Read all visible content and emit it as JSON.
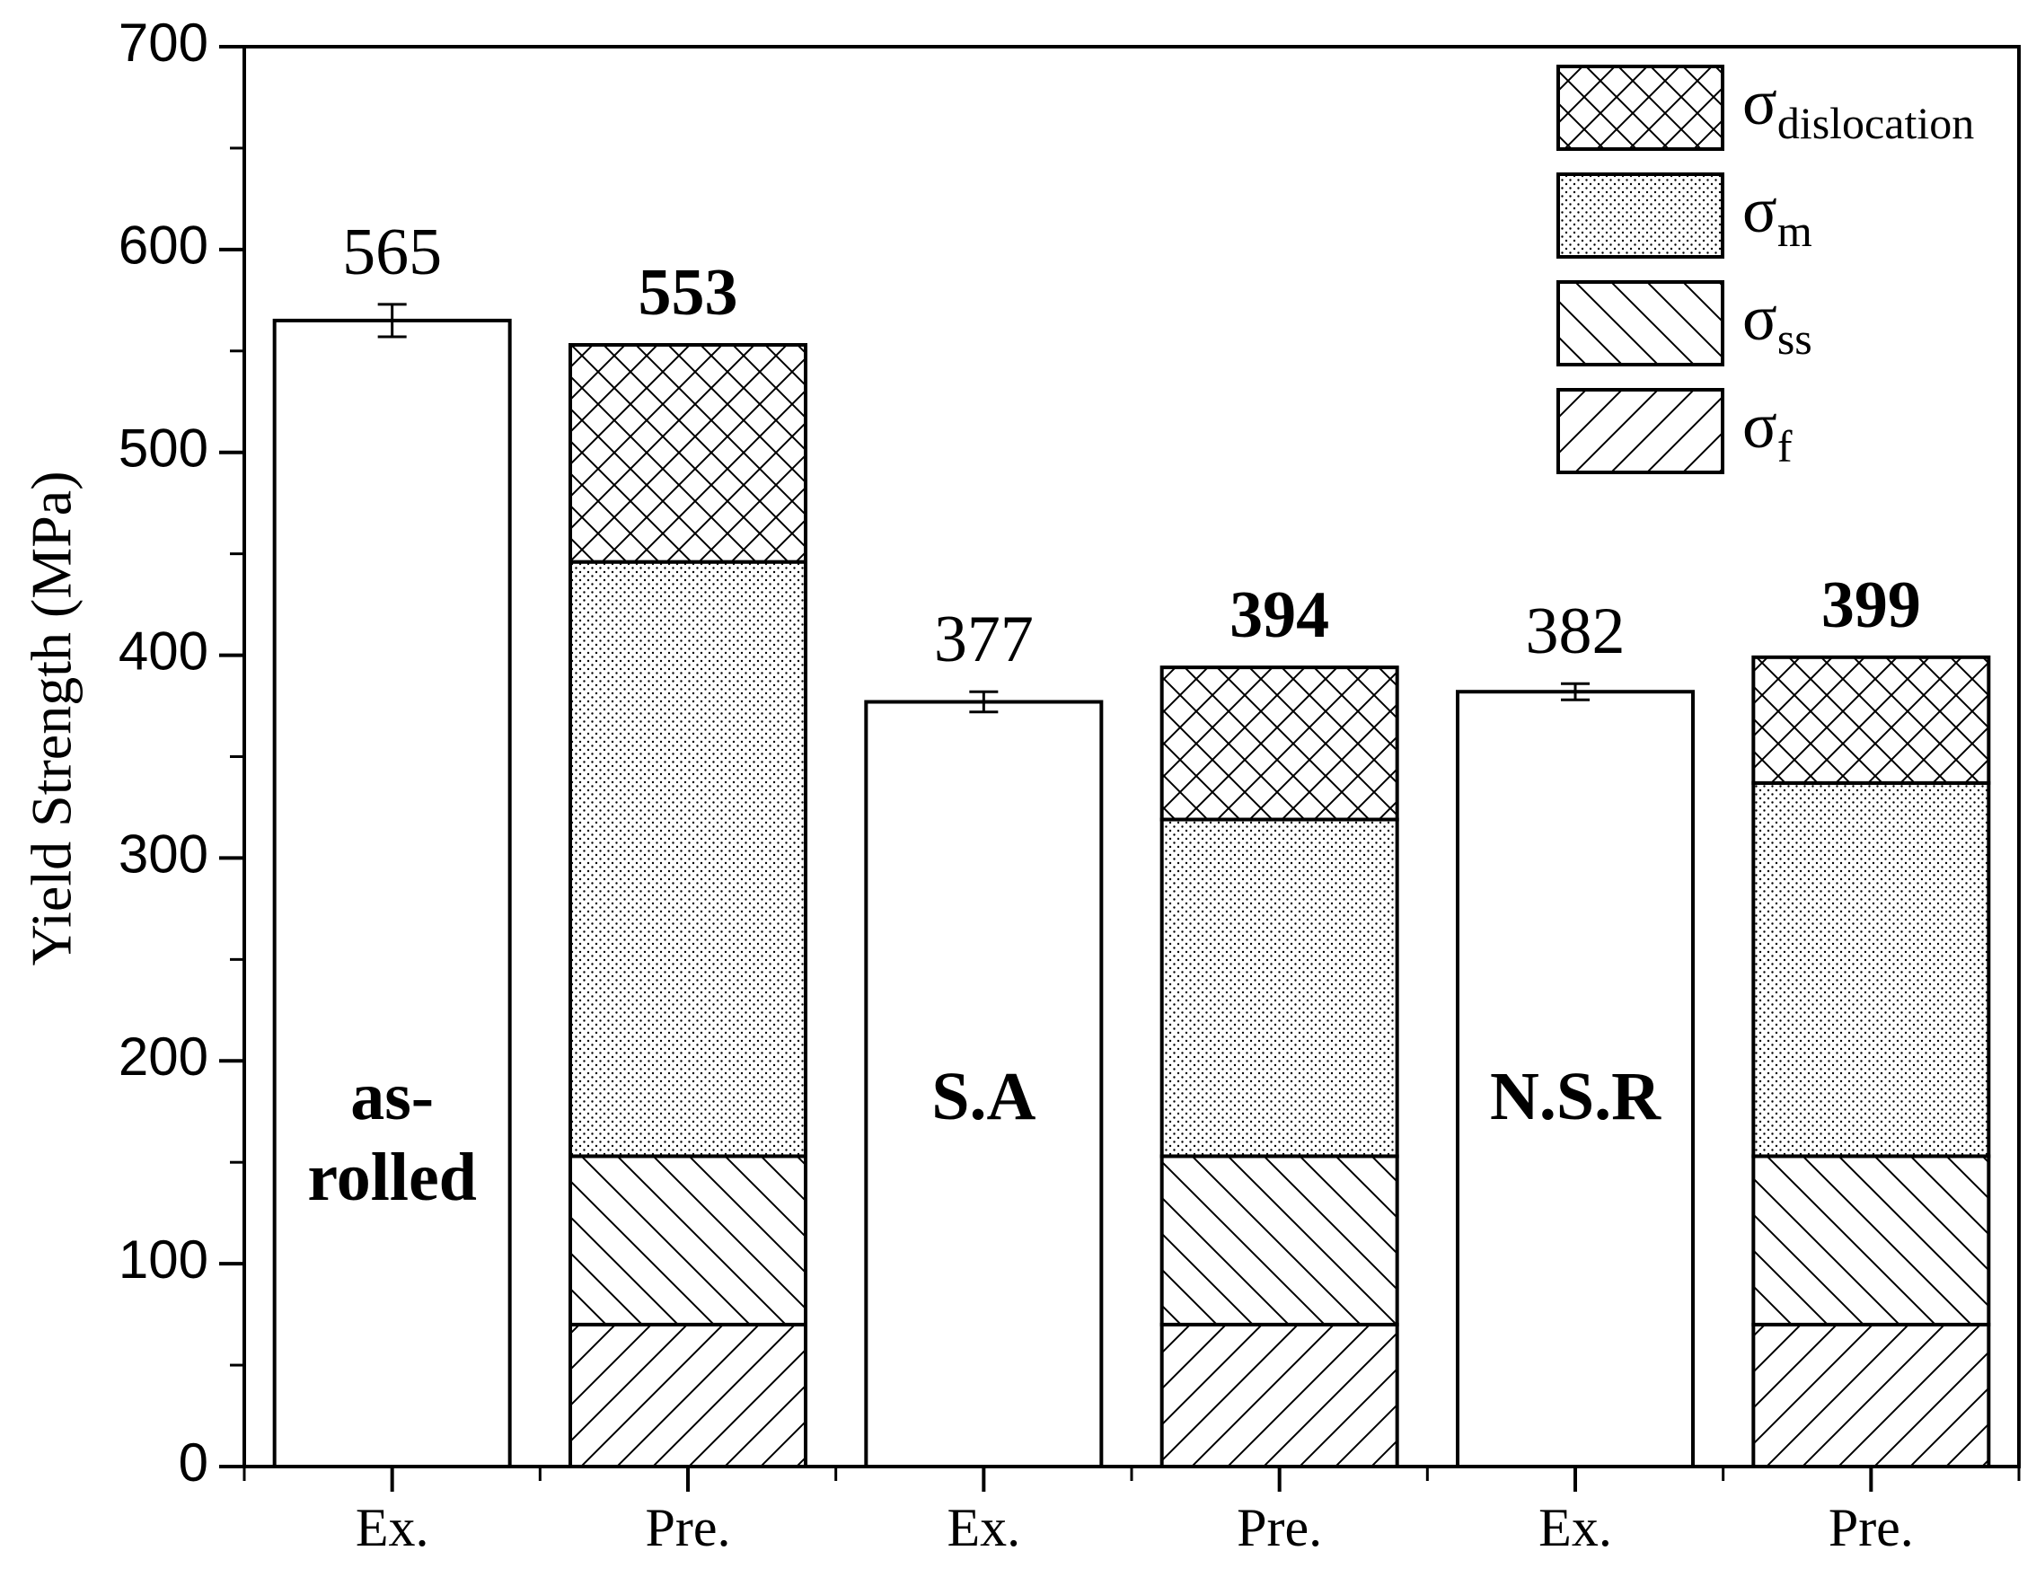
{
  "chart_data": {
    "type": "bar",
    "stacked": true,
    "ylabel": "Yield Strength (MPa)",
    "xlabel": "",
    "ylim": [
      0,
      700
    ],
    "yticks": [
      0,
      100,
      200,
      300,
      400,
      500,
      600,
      700
    ],
    "grid": false,
    "legend_position": "top-right",
    "categories": [
      "Ex.",
      "Pre.",
      "Ex.",
      "Pre.",
      "Ex.",
      "Pre."
    ],
    "group_labels": [
      {
        "bar": 0,
        "lines": [
          "as-",
          "rolled"
        ]
      },
      {
        "bar": 2,
        "lines": [
          "S.A"
        ]
      },
      {
        "bar": 4,
        "lines": [
          "N.S.R"
        ]
      }
    ],
    "experimental": {
      "bars": [
        0,
        2,
        4
      ],
      "values": [
        565,
        377,
        382
      ],
      "errors": [
        8,
        5,
        4
      ]
    },
    "series": [
      {
        "name": "σ",
        "subscript": "f",
        "pattern": "hatch-forward",
        "values": [
          null,
          70,
          null,
          70,
          null,
          70
        ]
      },
      {
        "name": "σ",
        "subscript": "ss",
        "pattern": "hatch-back",
        "values": [
          null,
          83,
          null,
          83,
          null,
          83
        ]
      },
      {
        "name": "σ",
        "subscript": "m",
        "pattern": "dots",
        "values": [
          null,
          293,
          null,
          166,
          null,
          184
        ]
      },
      {
        "name": "σ",
        "subscript": "dislocation",
        "pattern": "crosshatch",
        "values": [
          null,
          107,
          null,
          75,
          null,
          62
        ]
      }
    ],
    "legend_order": [
      3,
      2,
      1,
      0
    ],
    "total_labels": [
      {
        "bar": 0,
        "text": "565",
        "bold": false
      },
      {
        "bar": 1,
        "text": "553",
        "bold": true
      },
      {
        "bar": 2,
        "text": "377",
        "bold": false
      },
      {
        "bar": 3,
        "text": "394",
        "bold": true
      },
      {
        "bar": 4,
        "text": "382",
        "bold": false
      },
      {
        "bar": 5,
        "text": "399",
        "bold": true
      }
    ]
  },
  "colors": {
    "line": "#000000",
    "bar_fill": "#ffffff",
    "text": "#000000"
  }
}
